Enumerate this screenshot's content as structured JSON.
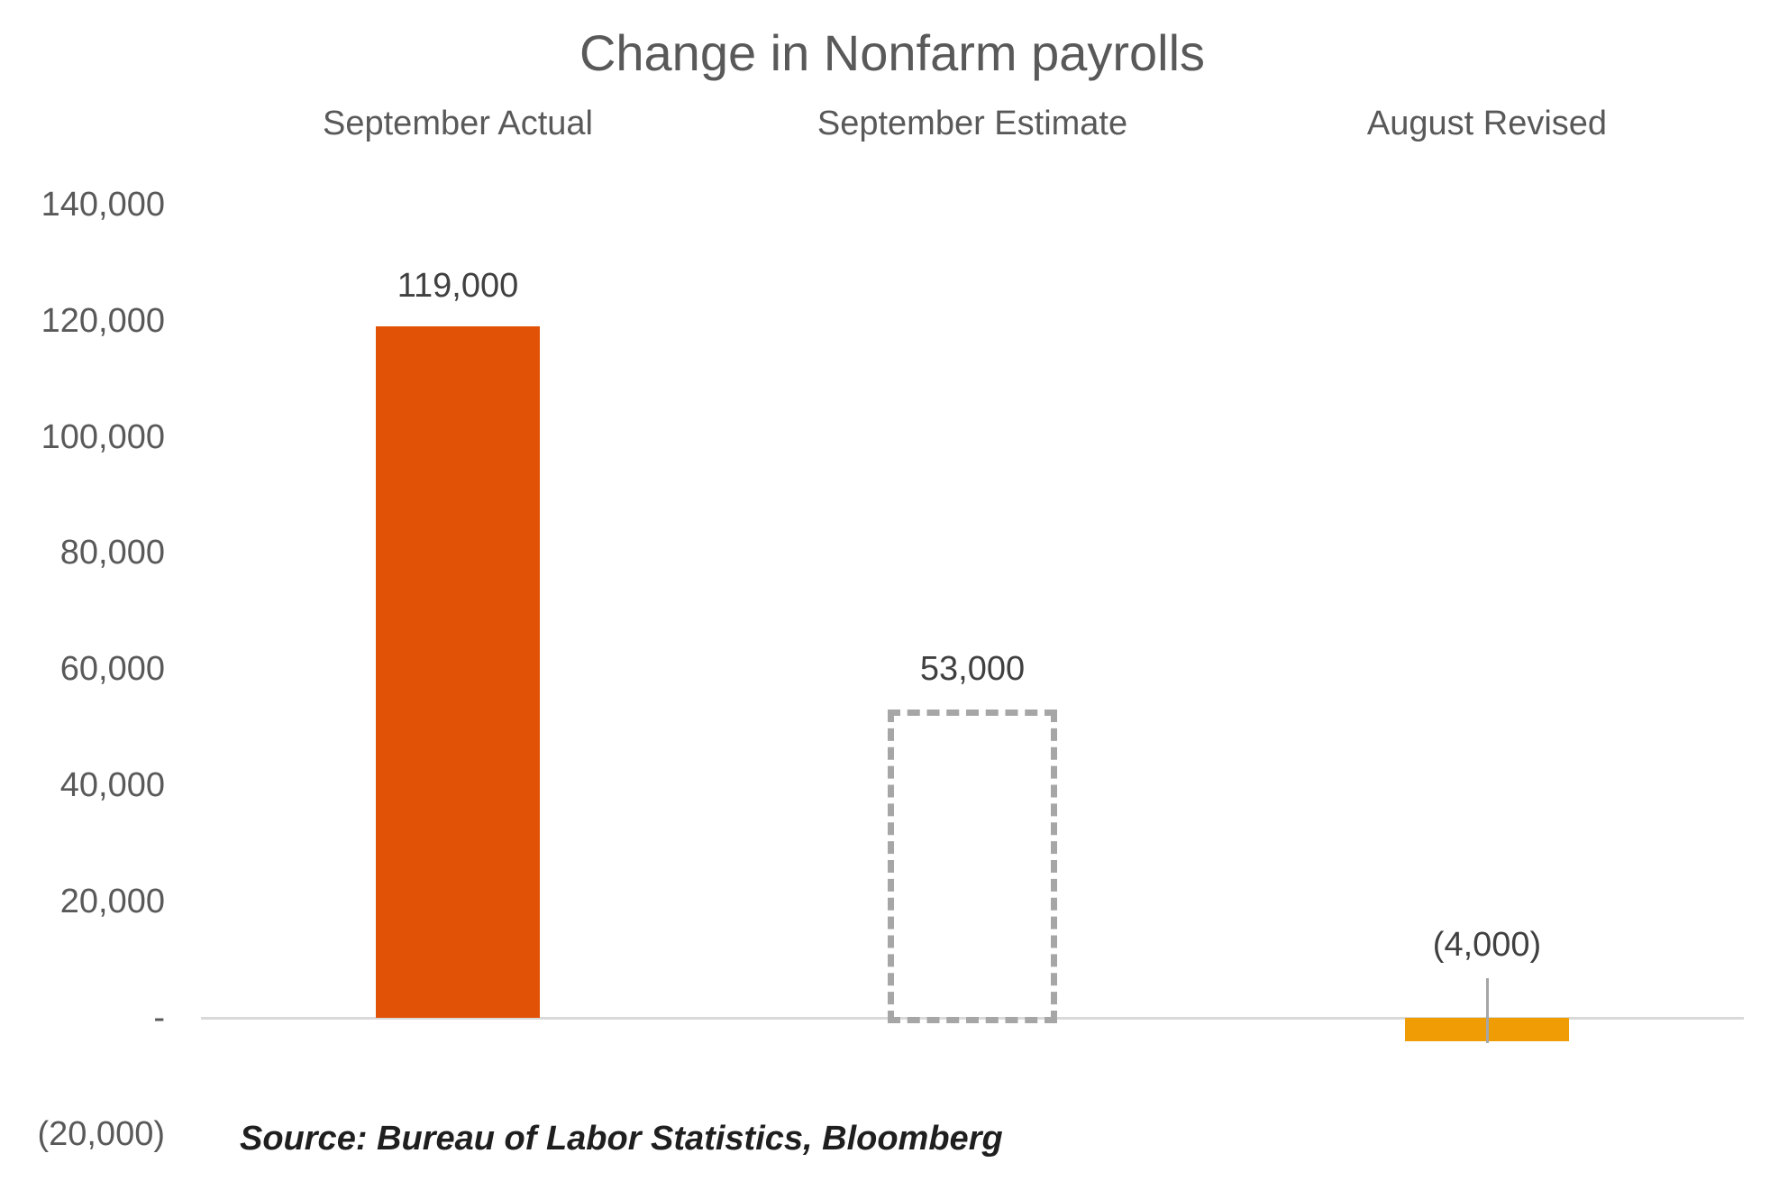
{
  "title": "Change in Nonfarm payrolls",
  "source_note": "Source: Bureau of Labor Statistics, Bloomberg",
  "chart_data": {
    "type": "bar",
    "title": "Change in Nonfarm payrolls",
    "categories": [
      "September Actual",
      "September Estimate",
      "August Revised"
    ],
    "values": [
      119000,
      53000,
      -4000
    ],
    "data_labels": [
      "119,000",
      "53,000",
      "(4,000)"
    ],
    "bar_styles": [
      "solid",
      "dashed-outline",
      "solid"
    ],
    "bar_colors": [
      "#e25206",
      "none",
      "#f09d05"
    ],
    "y_axis": {
      "min": -20000,
      "max": 140000,
      "tick_step": 20000,
      "tick_values": [
        140000,
        120000,
        100000,
        80000,
        60000,
        40000,
        20000,
        0,
        -20000
      ],
      "tick_labels": [
        "140,000",
        "120,000",
        "100,000",
        "80,000",
        "60,000",
        "40,000",
        "20,000",
        "-",
        "(20,000)"
      ]
    },
    "grid": false,
    "legend": "none",
    "negative_label_callout": true,
    "colors": {
      "actual_bar": "#e25206",
      "estimate_outline": "#a6a6a6",
      "revised_bar": "#f09d05",
      "axis_line": "#d9d9d9",
      "title_text": "#595959",
      "header_text": "#595959",
      "tick_text": "#595959",
      "data_label_text": "#404040",
      "leader_line": "#a6a6a6",
      "source_text": "#1f1f1f"
    },
    "source": "Source: Bureau of Labor Statistics, Bloomberg"
  }
}
